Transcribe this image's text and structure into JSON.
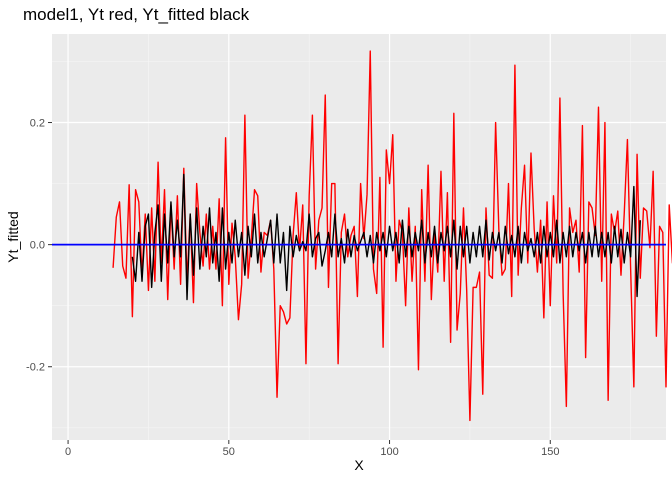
{
  "chart_data": {
    "type": "line",
    "title": "model1, Yt red, Yt_fitted black",
    "xlabel": "X",
    "ylabel": "Yt_fitted",
    "xlim": [
      -5,
      186
    ],
    "ylim": [
      -0.32,
      0.345
    ],
    "x_ticks": [
      0,
      50,
      100,
      150
    ],
    "x_tick_labels": [
      "0",
      "50",
      "100",
      "150"
    ],
    "y_ticks": [
      -0.2,
      0.0,
      0.2
    ],
    "y_tick_labels": [
      "-0.2",
      "0.0",
      "0.2"
    ],
    "grid": true,
    "hline": {
      "y": 0,
      "color": "#0000ff"
    },
    "series": [
      {
        "color": "#ff0000",
        "x_start": 14,
        "values": [
          -0.038,
          0.045,
          0.07,
          -0.035,
          -0.055,
          0.098,
          -0.118,
          0.09,
          0.07,
          -0.05,
          0.05,
          -0.075,
          0.06,
          -0.06,
          0.135,
          -0.03,
          0.09,
          -0.09,
          0.065,
          -0.04,
          0.08,
          -0.065,
          0.125,
          -0.06,
          0.05,
          -0.095,
          0.1,
          0.02,
          -0.035,
          0.05,
          -0.04,
          0.03,
          -0.04,
          0.075,
          -0.1,
          0.175,
          -0.065,
          0.035,
          -0.02,
          -0.123,
          -0.065,
          0.212,
          -0.055,
          0.01,
          0.09,
          0.08,
          -0.045,
          0.02,
          0.015,
          0.04,
          -0.04,
          -0.25,
          -0.1,
          -0.11,
          -0.13,
          -0.12,
          0.015,
          0.085,
          -0.01,
          0.065,
          -0.195,
          0.08,
          0.212,
          -0.04,
          0.04,
          0.06,
          0.245,
          -0.07,
          0.1,
          0.1,
          -0.195,
          0.02,
          0.05,
          -0.02,
          0.015,
          0.03,
          -0.085,
          0.1,
          0.01,
          0.082,
          0.317,
          -0.04,
          -0.08,
          0.11,
          -0.168,
          0.155,
          0.1,
          0.18,
          -0.06,
          0.04,
          0.02,
          -0.1,
          0.06,
          -0.06,
          0.03,
          -0.205,
          0.09,
          -0.06,
          0.13,
          -0.09,
          0.02,
          -0.045,
          0.12,
          -0.06,
          0.085,
          -0.16,
          0.215,
          -0.14,
          -0.08,
          0.06,
          -0.075,
          -0.288,
          -0.07,
          -0.07,
          -0.045,
          -0.245,
          0.06,
          -0.05,
          -0.055,
          0.2,
          0.025,
          -0.05,
          -0.04,
          0.1,
          -0.085,
          0.294,
          -0.05,
          0.06,
          0.13,
          -0.03,
          0.15,
          0.025,
          -0.045,
          0.04,
          -0.12,
          0.07,
          -0.1,
          0.08,
          -0.03,
          0.24,
          -0.08,
          -0.265,
          0.06,
          0.02,
          0.04,
          -0.045,
          0.195,
          -0.185,
          0.07,
          0.06,
          0.015,
          0.225,
          -0.06,
          0.2,
          -0.255,
          0.05,
          0.02,
          0.055,
          -0.05,
          0.05,
          0.172,
          -0.04,
          -0.233,
          0.148,
          -0.055,
          0.06,
          0.055,
          -0.005,
          0.12,
          -0.15,
          0.03,
          0.02,
          -0.233,
          0.065,
          -0.03,
          0.055
        ]
      },
      {
        "color": "#000000",
        "x_start": 20,
        "values": [
          -0.02,
          -0.06,
          0.02,
          -0.06,
          0.03,
          0.05,
          -0.07,
          0.02,
          0.065,
          -0.06,
          0.05,
          -0.03,
          0.07,
          -0.02,
          0.04,
          -0.02,
          0.115,
          -0.09,
          0.05,
          -0.05,
          0.06,
          -0.04,
          0.03,
          -0.02,
          0.06,
          -0.03,
          0.02,
          -0.06,
          0.06,
          -0.04,
          0.02,
          -0.03,
          0.04,
          -0.02,
          0.02,
          -0.05,
          0.03,
          -0.02,
          0.05,
          -0.03,
          0.02,
          -0.02,
          0.01,
          0.04,
          -0.03,
          0.05,
          -0.03,
          0.02,
          -0.075,
          0.03,
          -0.02,
          0.015,
          -0.01,
          0.005,
          -0.01,
          0.05,
          -0.02,
          0.01,
          0.02,
          -0.035,
          -0.01,
          0.02,
          -0.02,
          0.05,
          -0.02,
          0.01,
          -0.03,
          0.025,
          -0.02,
          0.015,
          -0.01,
          0.005,
          0.02,
          -0.02,
          0.015,
          -0.03,
          0.02,
          -0.01,
          0.02,
          -0.02,
          0.03,
          -0.01,
          0.02,
          -0.03,
          0.04,
          -0.02,
          0.03,
          -0.02,
          0.02,
          -0.01,
          0.04,
          -0.03,
          0.02,
          -0.02,
          0.03,
          -0.03,
          0.02,
          -0.01,
          0.03,
          -0.02,
          0.04,
          -0.04,
          0.03,
          -0.02,
          0.03,
          -0.03,
          0.02,
          -0.02,
          0.03,
          -0.02,
          0.04,
          -0.025,
          0.02,
          -0.01,
          0.02,
          -0.03,
          0.03,
          -0.015,
          0.015,
          -0.02,
          0.03,
          -0.03,
          0.02,
          -0.01,
          0.01,
          -0.02,
          0.02,
          -0.03,
          0.03,
          -0.02,
          0.02,
          -0.02,
          0.04,
          -0.03,
          0.02,
          -0.02,
          0.03,
          -0.02,
          0.02,
          -0.01,
          0.02,
          -0.03,
          0.02,
          -0.02,
          0.03,
          -0.02,
          0.02,
          -0.02,
          0.02,
          -0.03,
          0.03,
          -0.02,
          0.025,
          -0.03,
          0.02,
          -0.02,
          0.095,
          -0.085,
          0.04
        ]
      }
    ]
  }
}
